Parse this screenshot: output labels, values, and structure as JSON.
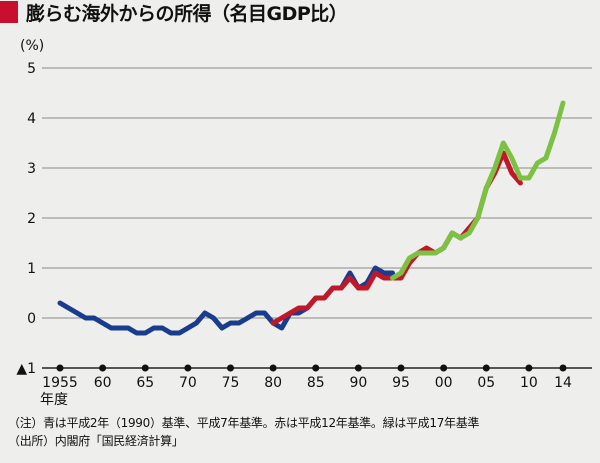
{
  "title": "膨らむ海外からの所得（名目GDP比）",
  "chart_data": {
    "type": "line",
    "ylabel": "(%)",
    "ylim": [
      -1,
      5
    ],
    "xlim": [
      1955,
      2014
    ],
    "y_ticks": [
      {
        "value": 5,
        "label": "5"
      },
      {
        "value": 4,
        "label": "4"
      },
      {
        "value": 3,
        "label": "3"
      },
      {
        "value": 2,
        "label": "2"
      },
      {
        "value": 1,
        "label": "1"
      },
      {
        "value": 0,
        "label": "0"
      },
      {
        "value": -1,
        "label": "▲1"
      }
    ],
    "x_ticks": [
      {
        "value": 1955,
        "label": "1955"
      },
      {
        "value": 1960,
        "label": "60"
      },
      {
        "value": 1965,
        "label": "65"
      },
      {
        "value": 1970,
        "label": "70"
      },
      {
        "value": 1975,
        "label": "75"
      },
      {
        "value": 1980,
        "label": "80"
      },
      {
        "value": 1985,
        "label": "85"
      },
      {
        "value": 1990,
        "label": "90"
      },
      {
        "value": 1995,
        "label": "95"
      },
      {
        "value": 2000,
        "label": "00"
      },
      {
        "value": 2005,
        "label": "05"
      },
      {
        "value": 2010,
        "label": "10"
      },
      {
        "value": 2014,
        "label": "14"
      }
    ],
    "x_axis_unit": "年度",
    "grid": true,
    "series": [
      {
        "color": "#1a3c8c",
        "x": [
          1955,
          1956,
          1957,
          1958,
          1959,
          1960,
          1961,
          1962,
          1963,
          1964,
          1965,
          1966,
          1967,
          1968,
          1969,
          1970,
          1971,
          1972,
          1973,
          1974,
          1975,
          1976,
          1977,
          1978,
          1979,
          1980,
          1981,
          1982,
          1983,
          1984,
          1985,
          1986,
          1987,
          1988,
          1989,
          1990,
          1991,
          1992,
          1993,
          1994
        ],
        "values": [
          0.3,
          0.2,
          0.1,
          0.0,
          0.0,
          -0.1,
          -0.2,
          -0.2,
          -0.2,
          -0.3,
          -0.3,
          -0.2,
          -0.2,
          -0.3,
          -0.3,
          -0.2,
          -0.1,
          0.1,
          0.0,
          -0.2,
          -0.1,
          -0.1,
          0.0,
          0.1,
          0.1,
          -0.1,
          -0.2,
          0.1,
          0.1,
          0.2,
          0.4,
          0.4,
          0.6,
          0.6,
          0.9,
          0.6,
          0.7,
          1.0,
          0.9,
          0.9
        ]
      },
      {
        "color": "#c0182a",
        "x": [
          1980,
          1981,
          1982,
          1983,
          1984,
          1985,
          1986,
          1987,
          1988,
          1989,
          1990,
          1991,
          1992,
          1993,
          1994,
          1995,
          1996,
          1997,
          1998,
          1999,
          2000,
          2001,
          2002,
          2003,
          2004,
          2005,
          2006,
          2007,
          2008,
          2009
        ],
        "values": [
          -0.1,
          0.0,
          0.1,
          0.2,
          0.2,
          0.4,
          0.4,
          0.6,
          0.6,
          0.8,
          0.6,
          0.6,
          0.9,
          0.8,
          0.8,
          0.8,
          1.1,
          1.3,
          1.4,
          1.3,
          1.4,
          1.7,
          1.6,
          1.8,
          2.0,
          2.6,
          2.9,
          3.3,
          2.9,
          2.7
        ]
      },
      {
        "color": "#7cc242",
        "x": [
          1994,
          1995,
          1996,
          1997,
          1998,
          1999,
          2000,
          2001,
          2002,
          2003,
          2004,
          2005,
          2006,
          2007,
          2008,
          2009,
          2010,
          2011,
          2012,
          2013,
          2014
        ],
        "values": [
          0.8,
          0.9,
          1.2,
          1.3,
          1.3,
          1.3,
          1.4,
          1.7,
          1.6,
          1.7,
          2.0,
          2.6,
          3.0,
          3.5,
          3.2,
          2.8,
          2.8,
          3.1,
          3.2,
          3.7,
          4.3
        ]
      }
    ]
  },
  "notes": [
    "（注）青は平成2年（1990）基準、平成7年基準。赤は平成12年基準。緑は平成17年基準",
    "（出所）内閣府「国民経済計算」"
  ]
}
